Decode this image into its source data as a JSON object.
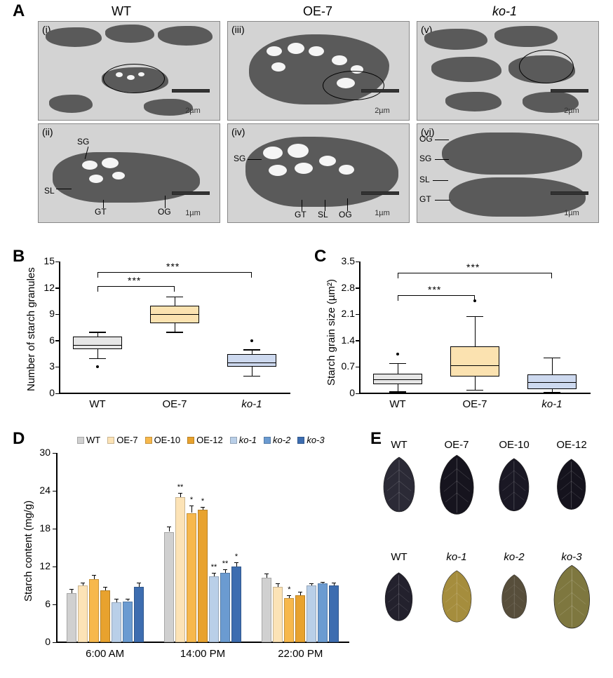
{
  "panelA": {
    "column_headers": [
      "WT",
      "OE-7",
      "ko-1"
    ],
    "column_header_italic": [
      false,
      false,
      true
    ],
    "subpanels": [
      {
        "roman": "(i)",
        "scale": "2µm"
      },
      {
        "roman": "(ii)",
        "scale": "1µm"
      },
      {
        "roman": "(iii)",
        "scale": "2µm"
      },
      {
        "roman": "(iv)",
        "scale": "1µm"
      },
      {
        "roman": "(v)",
        "scale": "2µm"
      },
      {
        "roman": "(vi)",
        "scale": "1µm"
      }
    ],
    "annotations_row2": {
      "wt": [
        "SG",
        "SL",
        "GT",
        "OG"
      ],
      "oe7": [
        "SG",
        "GT",
        "SL",
        "OG"
      ],
      "ko1": [
        "OG",
        "SG",
        "SL",
        "GT"
      ]
    }
  },
  "panelB": {
    "ylabel": "Number of starch granules",
    "ylim": [
      0,
      15
    ],
    "yticks": [
      0,
      3,
      6,
      9,
      12,
      15
    ],
    "categories": [
      "WT",
      "OE-7",
      "ko-1"
    ],
    "categories_italic": [
      false,
      false,
      true
    ],
    "boxes": [
      {
        "q1": 5,
        "median": 5.5,
        "q3": 6.5,
        "whisker_lo": 4,
        "whisker_hi": 7,
        "outliers": [
          3
        ],
        "fill": "#e6e6e6"
      },
      {
        "q1": 8,
        "median": 9,
        "q3": 10,
        "whisker_lo": 7,
        "whisker_hi": 11,
        "outliers": [],
        "fill": "#fbe2b0"
      },
      {
        "q1": 3,
        "median": 3.5,
        "q3": 4.5,
        "whisker_lo": 2,
        "whisker_hi": 5,
        "outliers": [
          6
        ],
        "fill": "#cdd9ef"
      }
    ],
    "sig": [
      {
        "from": 0,
        "to": 1,
        "text": "***",
        "y": 12.2
      },
      {
        "from": 0,
        "to": 2,
        "text": "***",
        "y": 13.8
      }
    ]
  },
  "panelC": {
    "ylabel": "Starch grain size (µm²)",
    "ylim": [
      0,
      3.5
    ],
    "yticks": [
      0,
      0.7,
      1.4,
      2.1,
      2.8,
      3.5
    ],
    "categories": [
      "WT",
      "OE-7",
      "ko-1"
    ],
    "categories_italic": [
      false,
      false,
      true
    ],
    "boxes": [
      {
        "q1": 0.25,
        "median": 0.38,
        "q3": 0.52,
        "whisker_lo": 0.05,
        "whisker_hi": 0.8,
        "outliers": [
          1.05
        ],
        "fill": "#e6e6e6"
      },
      {
        "q1": 0.45,
        "median": 0.75,
        "q3": 1.25,
        "whisker_lo": 0.1,
        "whisker_hi": 2.05,
        "outliers": [
          2.45
        ],
        "fill": "#fbe2b0"
      },
      {
        "q1": 0.12,
        "median": 0.3,
        "q3": 0.5,
        "whisker_lo": 0.03,
        "whisker_hi": 0.95,
        "outliers": [],
        "fill": "#cdd9ef"
      }
    ],
    "sig": [
      {
        "from": 0,
        "to": 1,
        "text": "***",
        "y": 2.6
      },
      {
        "from": 0,
        "to": 2,
        "text": "***",
        "y": 3.2
      }
    ]
  },
  "panelD": {
    "ylabel": "Starch content (mg/g)",
    "ylim": [
      0,
      30
    ],
    "yticks": [
      0,
      6,
      12,
      18,
      24,
      30
    ],
    "legend": [
      {
        "label": "WT",
        "color": "#d0d0d0",
        "italic": false
      },
      {
        "label": "OE-7",
        "color": "#fce3b6",
        "italic": false
      },
      {
        "label": "OE-10",
        "color": "#f7b84c",
        "italic": false
      },
      {
        "label": "OE-12",
        "color": "#e8a22e",
        "italic": false
      },
      {
        "label": "ko-1",
        "color": "#b9cfe8",
        "italic": true
      },
      {
        "label": "ko-2",
        "color": "#6b9bd1",
        "italic": true
      },
      {
        "label": "ko-3",
        "color": "#3d6db0",
        "italic": true
      }
    ],
    "groups": [
      {
        "label": "6:00 AM",
        "bars": [
          {
            "v": 7.8,
            "err": 0.6,
            "sig": ""
          },
          {
            "v": 9.0,
            "err": 0.5,
            "sig": ""
          },
          {
            "v": 10.0,
            "err": 0.7,
            "sig": ""
          },
          {
            "v": 8.2,
            "err": 0.6,
            "sig": ""
          },
          {
            "v": 6.3,
            "err": 0.6,
            "sig": ""
          },
          {
            "v": 6.5,
            "err": 0.4,
            "sig": ""
          },
          {
            "v": 8.8,
            "err": 0.7,
            "sig": ""
          }
        ]
      },
      {
        "label": "14:00 PM",
        "bars": [
          {
            "v": 17.5,
            "err": 0.8,
            "sig": ""
          },
          {
            "v": 23.0,
            "err": 0.7,
            "sig": "**"
          },
          {
            "v": 20.5,
            "err": 1.2,
            "sig": "*"
          },
          {
            "v": 21.0,
            "err": 0.5,
            "sig": "*"
          },
          {
            "v": 10.5,
            "err": 0.5,
            "sig": "**"
          },
          {
            "v": 11.0,
            "err": 0.6,
            "sig": "**"
          },
          {
            "v": 12.0,
            "err": 0.7,
            "sig": "*"
          }
        ]
      },
      {
        "label": "22:00 PM",
        "bars": [
          {
            "v": 10.2,
            "err": 0.7,
            "sig": ""
          },
          {
            "v": 8.8,
            "err": 0.5,
            "sig": ""
          },
          {
            "v": 7.0,
            "err": 0.4,
            "sig": "*"
          },
          {
            "v": 7.5,
            "err": 0.5,
            "sig": ""
          },
          {
            "v": 9.0,
            "err": 0.3,
            "sig": ""
          },
          {
            "v": 9.3,
            "err": 0.3,
            "sig": ""
          },
          {
            "v": 9.0,
            "err": 0.4,
            "sig": ""
          }
        ]
      }
    ]
  },
  "panelE": {
    "rows": [
      {
        "labels": [
          "WT",
          "OE-7",
          "OE-10",
          "OE-12"
        ],
        "italic": [
          false,
          false,
          false,
          false
        ],
        "colors": [
          "#2b2a36",
          "#16141e",
          "#1a1824",
          "#15131d"
        ],
        "sizes": [
          1.0,
          1.08,
          0.96,
          0.92
        ]
      },
      {
        "labels": [
          "WT",
          "ko-1",
          "ko-2",
          "ko-3"
        ],
        "italic": [
          false,
          true,
          true,
          true
        ],
        "colors": [
          "#23212d",
          "#a58d3d",
          "#574e3b",
          "#7e773f"
        ],
        "sizes": [
          0.88,
          0.94,
          0.8,
          1.15
        ]
      }
    ]
  },
  "letters": {
    "A": "A",
    "B": "B",
    "C": "C",
    "D": "D",
    "E": "E"
  },
  "styling": {
    "axis_color": "#000000",
    "background": "#ffffff",
    "font_family": "Arial",
    "panel_letter_fontsize": 24,
    "axis_label_fontsize": 15,
    "tick_fontsize": 14
  }
}
